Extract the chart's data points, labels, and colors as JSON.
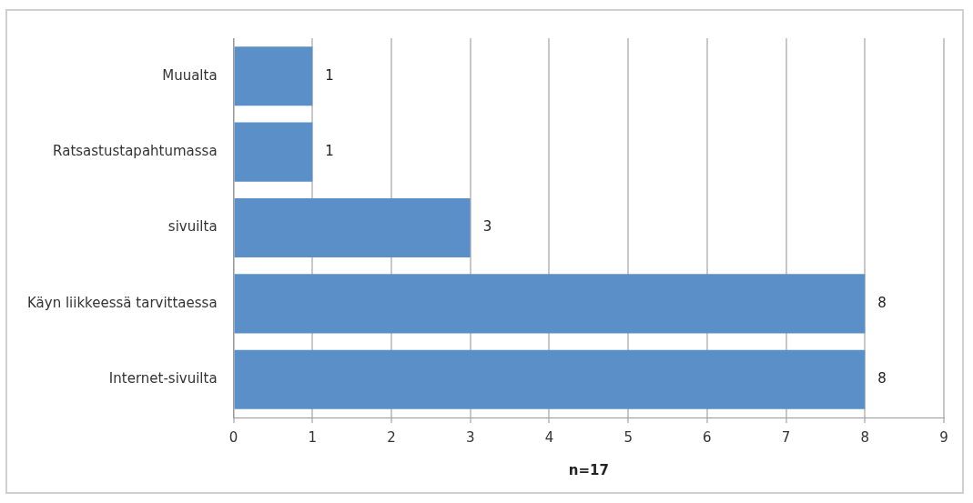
{
  "chart_data": {
    "type": "bar",
    "orientation": "horizontal",
    "xlabel": "n=17",
    "categories": [
      "Muualta",
      "Ratsastustapahtumassa",
      "sivuilta",
      "Käyn liikkeessä tarvittaessa",
      "Internet-sivuilta"
    ],
    "values": [
      1,
      1,
      3,
      8,
      8
    ],
    "color": "#5b8fc8",
    "xlim": [
      0,
      9
    ],
    "xticks": [
      0,
      1,
      2,
      3,
      4,
      5,
      6,
      7,
      8,
      9
    ],
    "grid": "x",
    "data_labels": true,
    "legend": false
  }
}
